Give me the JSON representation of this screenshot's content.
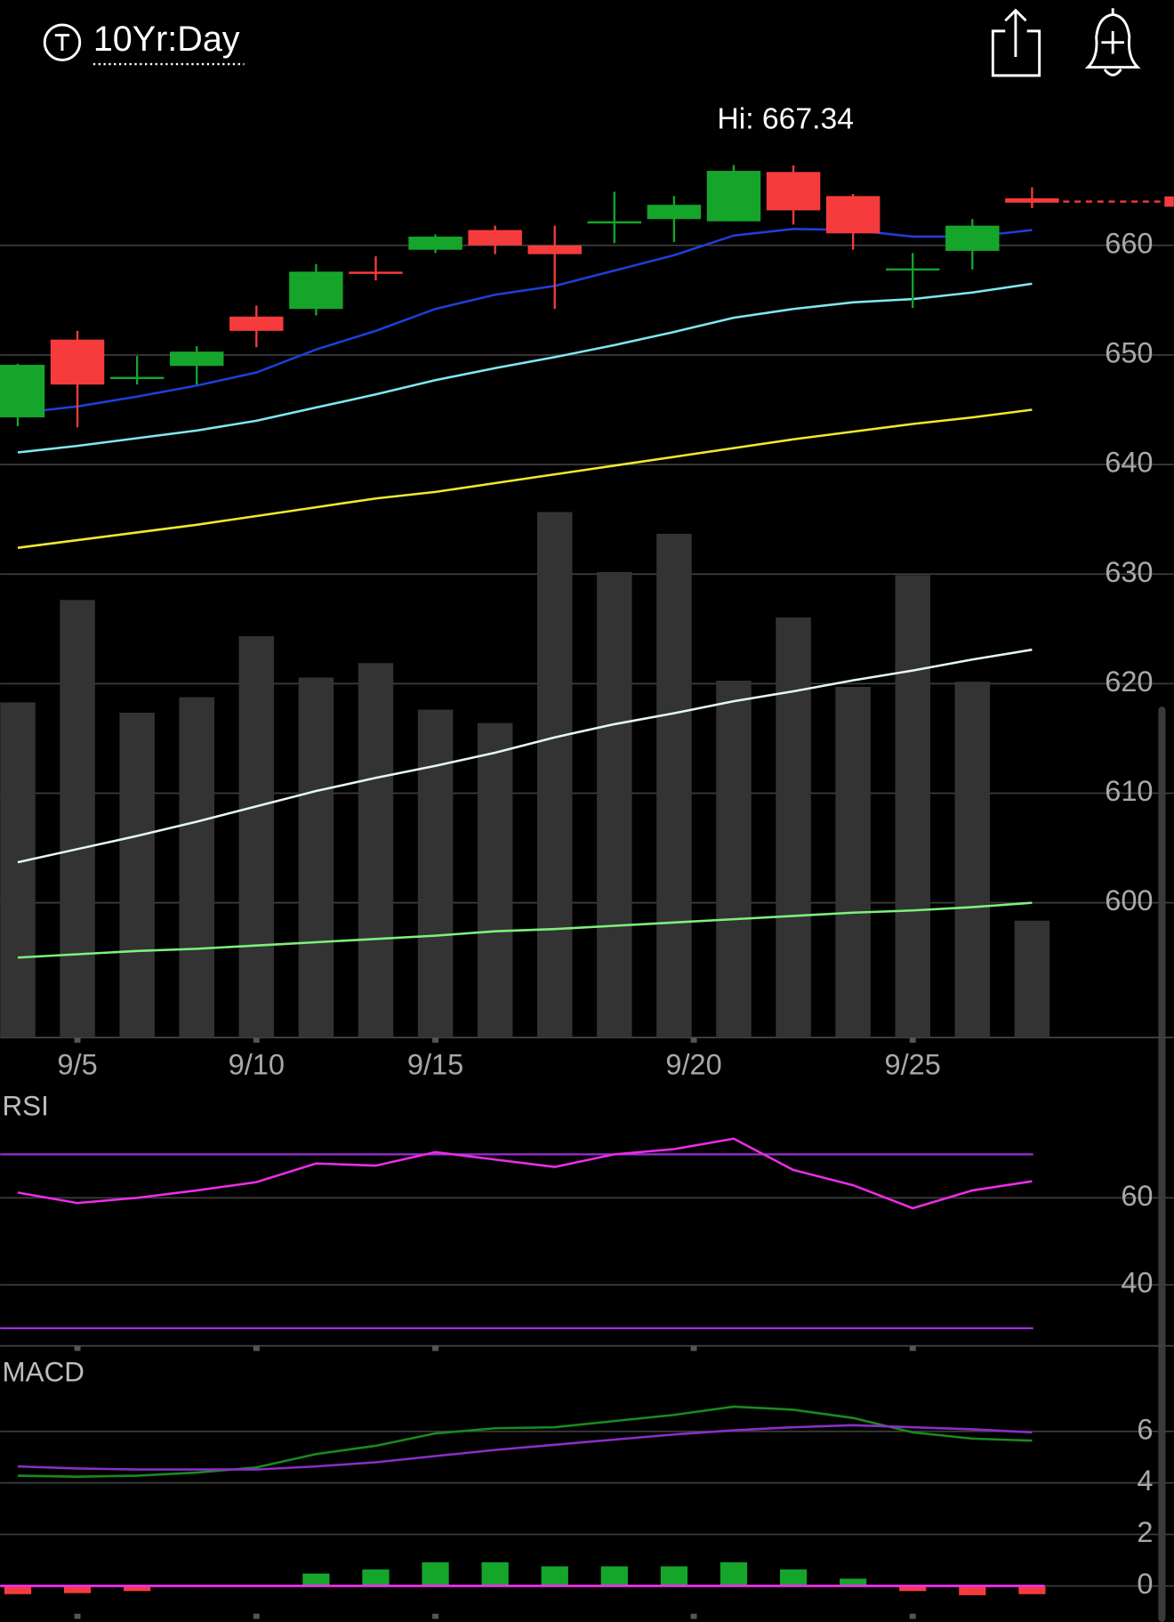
{
  "header": {
    "title": "10Yr:Day"
  },
  "chart_data": [
    {
      "type": "candlestick",
      "open": [
        644.3,
        651.4,
        647.8,
        649.0,
        653.5,
        654.2,
        657.6,
        659.6,
        661.4,
        660.0,
        662.0,
        662.4,
        662.2,
        666.7,
        664.5,
        657.8,
        659.5,
        664.3
      ],
      "high": [
        649.2,
        652.2,
        649.9,
        650.8,
        654.5,
        658.3,
        659.0,
        661.0,
        661.8,
        661.8,
        664.9,
        664.5,
        667.34,
        667.3,
        664.7,
        659.3,
        662.4,
        665.3
      ],
      "low": [
        643.5,
        643.4,
        647.3,
        647.3,
        650.7,
        653.6,
        656.8,
        659.3,
        659.2,
        654.2,
        660.2,
        660.3,
        662.2,
        661.9,
        659.6,
        654.3,
        657.8,
        663.4
      ],
      "close": [
        649.1,
        647.3,
        648.0,
        650.3,
        652.2,
        657.6,
        657.4,
        660.8,
        660.0,
        659.2,
        662.2,
        663.7,
        666.8,
        663.2,
        661.1,
        657.9,
        661.8,
        663.9
      ],
      "up_color": "#16a52b",
      "down_color": "#f63b3d",
      "annotation": "Hi: 667.34",
      "last_price": 664.0,
      "ylim": [
        587.7,
        673.9
      ],
      "yticks": [
        600,
        610,
        620,
        630,
        640,
        650,
        660
      ],
      "grid": true,
      "xticks": [
        {
          "value": 1,
          "label": "9/5"
        },
        {
          "value": 4,
          "label": "9/10"
        },
        {
          "value": 7,
          "label": "9/15"
        },
        {
          "value": 11.33,
          "label": "9/20"
        },
        {
          "value": 15,
          "label": "9/25"
        }
      ],
      "overlays": [
        {
          "color": "#1e3fd8",
          "values": [
            644.7,
            645.3,
            646.2,
            647.2,
            648.4,
            650.5,
            652.2,
            654.2,
            655.5,
            656.3,
            657.7,
            659.1,
            660.9,
            661.5,
            661.4,
            660.8,
            660.8,
            661.4
          ]
        },
        {
          "color": "#7fe8f0",
          "values": [
            641.1,
            641.7,
            642.4,
            643.1,
            644.0,
            645.2,
            646.4,
            647.7,
            648.8,
            649.8,
            650.9,
            652.1,
            653.4,
            654.2,
            654.8,
            655.1,
            655.7,
            656.5
          ]
        },
        {
          "color": "#f2e831",
          "values": [
            632.4,
            633.1,
            633.8,
            634.5,
            635.3,
            636.1,
            636.9,
            637.5,
            638.3,
            639.1,
            639.9,
            640.7,
            641.5,
            642.3,
            643.0,
            643.7,
            644.3,
            645.0
          ]
        },
        {
          "color": "#e6f5f5",
          "values": [
            603.7,
            604.9,
            606.1,
            607.4,
            608.8,
            610.2,
            611.4,
            612.5,
            613.7,
            615.1,
            616.3,
            617.3,
            618.4,
            619.3,
            620.3,
            621.2,
            622.2,
            623.1
          ]
        },
        {
          "color": "#7ff07a",
          "values": [
            595.0,
            595.3,
            595.6,
            595.8,
            596.1,
            596.4,
            596.7,
            597.0,
            597.4,
            597.6,
            597.9,
            598.2,
            598.5,
            598.8,
            599.1,
            599.3,
            599.6,
            600.0
          ]
        }
      ],
      "volume": {
        "color": "#333333",
        "ylim": [
          0,
          913
        ],
        "values": [
          324,
          423,
          314,
          329,
          388,
          348,
          362,
          317,
          304,
          508,
          450,
          487,
          345,
          406,
          339,
          447,
          344,
          113
        ]
      }
    },
    {
      "type": "line",
      "title": "RSI",
      "ylim": [
        26.2,
        83.3
      ],
      "yticks": [
        40,
        60
      ],
      "grid": true,
      "reference_lines": [
        70,
        30
      ],
      "reference_color": "#9b2fd6",
      "series": [
        {
          "color": "#ea2ee6",
          "values": [
            61.2,
            58.8,
            60.0,
            61.7,
            63.6,
            67.9,
            67.4,
            70.5,
            68.8,
            67.1,
            70.0,
            71.2,
            73.6,
            66.4,
            62.9,
            57.6,
            61.7,
            63.8
          ]
        }
      ]
    },
    {
      "type": "macd",
      "title": "MACD",
      "ylim": [
        -1.28,
        8.96
      ],
      "yticks": [
        0,
        2,
        4,
        6
      ],
      "grid": true,
      "zero_color": "#ea2ee6",
      "series": [
        {
          "color": "#1b8a1f",
          "values": [
            4.28,
            4.24,
            4.28,
            4.4,
            4.6,
            5.12,
            5.44,
            5.92,
            6.12,
            6.16,
            6.4,
            6.64,
            6.96,
            6.84,
            6.52,
            5.96,
            5.72,
            5.64
          ]
        },
        {
          "color": "#8a2fc8",
          "values": [
            4.64,
            4.56,
            4.52,
            4.52,
            4.52,
            4.64,
            4.8,
            5.04,
            5.28,
            5.48,
            5.68,
            5.88,
            6.04,
            6.16,
            6.24,
            6.16,
            6.08,
            5.96
          ]
        }
      ],
      "histogram": {
        "up_color": "#16a52b",
        "down_color": "#f63b3d",
        "values": [
          -0.32,
          -0.28,
          -0.2,
          -0.04,
          0.0,
          0.48,
          0.64,
          0.92,
          0.92,
          0.76,
          0.76,
          0.76,
          0.92,
          0.64,
          0.28,
          -0.2,
          -0.36,
          -0.32
        ]
      }
    }
  ]
}
